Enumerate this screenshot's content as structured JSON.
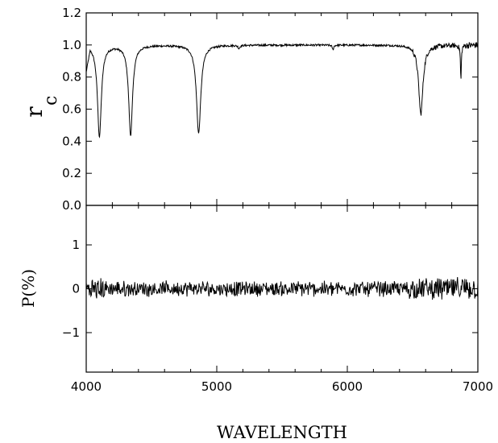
{
  "chart_data": [
    {
      "type": "line",
      "panel": "top",
      "ylabel_main": "r",
      "ylabel_sub": "c",
      "xlim": [
        4000,
        7000
      ],
      "ylim": [
        0.0,
        1.2
      ],
      "yticks": [
        "0.0",
        "0.2",
        "0.4",
        "0.6",
        "0.8",
        "1.0",
        "1.2"
      ],
      "continuum": 1.0,
      "absorption_lines": [
        {
          "center": 4101,
          "depth": 0.57,
          "width": 18
        },
        {
          "center": 4340,
          "depth": 0.56,
          "width": 18
        },
        {
          "center": 4861,
          "depth": 0.55,
          "width": 20
        },
        {
          "center": 6563,
          "depth": 0.43,
          "width": 20
        },
        {
          "center": 6870,
          "depth": 0.22,
          "width": 4
        },
        {
          "center": 5890,
          "depth": 0.03,
          "width": 6
        },
        {
          "center": 5170,
          "depth": 0.02,
          "width": 8
        }
      ],
      "grid": false
    },
    {
      "type": "line",
      "panel": "bottom",
      "ylabel": "P(%)",
      "xlabel": "WAVELENGTH",
      "xlim": [
        4000,
        7000
      ],
      "ylim": [
        -1.9,
        1.9
      ],
      "yticks": [
        "−1",
        "0",
        "1"
      ],
      "xticks": [
        "4000",
        "5000",
        "6000",
        "7000"
      ],
      "mean_level": 0.0,
      "noise_amplitude": 0.15,
      "grid": false
    }
  ]
}
